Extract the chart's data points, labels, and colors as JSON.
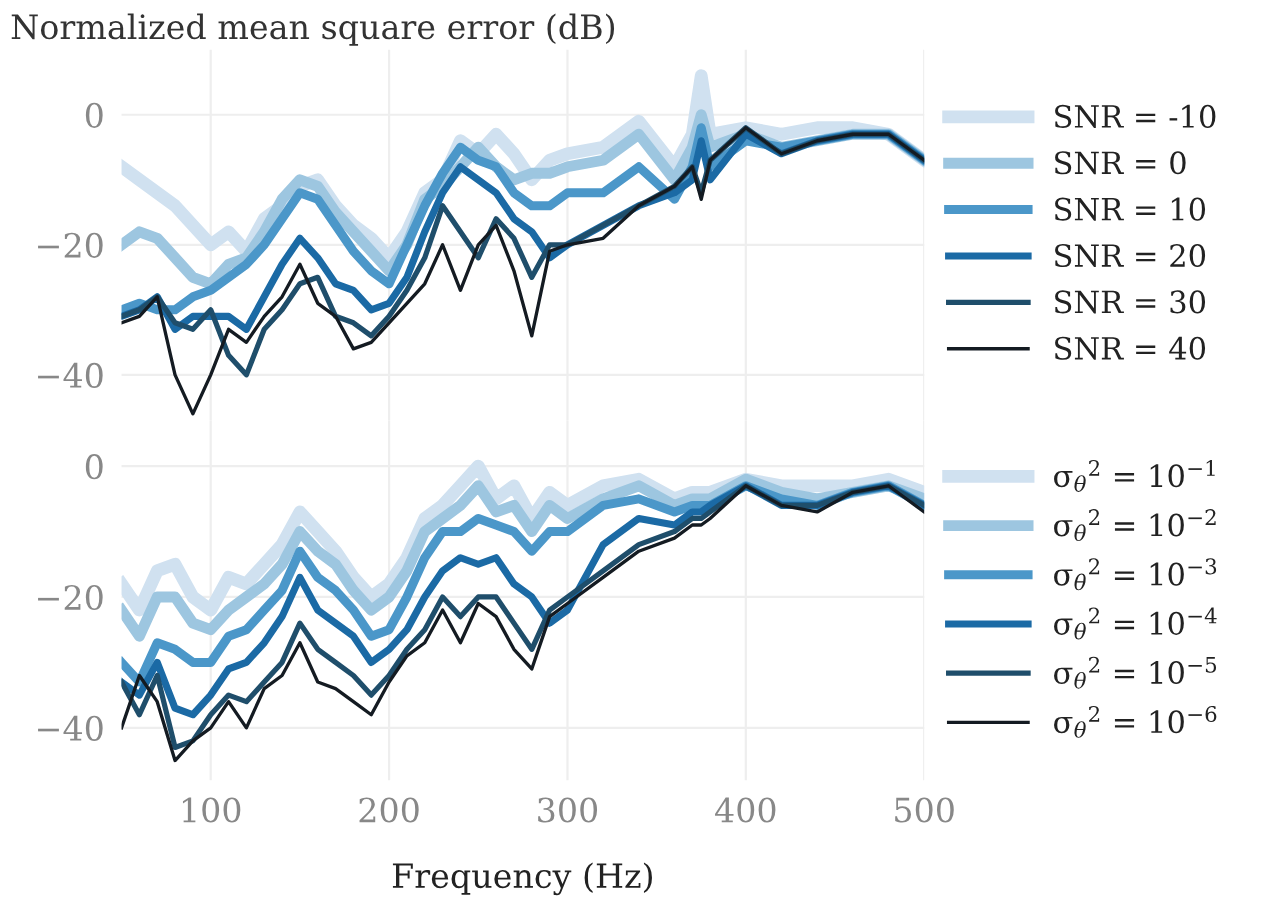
{
  "chart_data": [
    {
      "type": "line",
      "title": "Normalized mean square error (dB)",
      "grid": true,
      "legend": "right",
      "tick_labels": "y",
      "x": [
        50,
        60,
        70,
        80,
        90,
        100,
        110,
        120,
        130,
        140,
        150,
        160,
        170,
        180,
        190,
        200,
        210,
        220,
        230,
        240,
        250,
        260,
        270,
        280,
        290,
        300,
        320,
        340,
        360,
        370,
        375,
        380,
        400,
        420,
        440,
        460,
        480,
        500
      ],
      "xlim": [
        50,
        500
      ],
      "xticks": [
        100,
        200,
        300,
        400,
        500
      ],
      "ylim": [
        -47,
        10
      ],
      "yticks": [
        0,
        -20,
        -40
      ],
      "series": [
        {
          "name": "SNR = -10",
          "color": "#d0e1f0",
          "values": [
            -8,
            -10,
            -12,
            -14,
            -17,
            -20,
            -18,
            -21,
            -16,
            -14,
            -11,
            -10,
            -14,
            -17,
            -19,
            -22,
            -18,
            -12,
            -10,
            -4,
            -6,
            -3,
            -6,
            -10,
            -7,
            -6,
            -5,
            -1,
            -8,
            -3,
            6,
            -3,
            -2,
            -3,
            -2,
            -2,
            -3,
            -7
          ]
        },
        {
          "name": "SNR = 0",
          "color": "#9dc6e0",
          "values": [
            -20,
            -18,
            -19,
            -22,
            -25,
            -26,
            -23,
            -22,
            -18,
            -13,
            -10,
            -11,
            -15,
            -18,
            -21,
            -24,
            -20,
            -13,
            -11,
            -8,
            -5,
            -8,
            -10,
            -9,
            -9,
            -8,
            -7,
            -3,
            -10,
            -5,
            0,
            -5,
            -3,
            -5,
            -4,
            -3,
            -3,
            -7
          ]
        },
        {
          "name": "SNR = 10",
          "color": "#4b97c9",
          "values": [
            -30,
            -29,
            -30,
            -30,
            -28,
            -27,
            -25,
            -23,
            -20,
            -16,
            -12,
            -13,
            -17,
            -21,
            -24,
            -26,
            -20,
            -14,
            -9,
            -5,
            -7,
            -8,
            -12,
            -14,
            -14,
            -12,
            -12,
            -8,
            -13,
            -8,
            -2,
            -8,
            -4,
            -5,
            -4,
            -3,
            -3,
            -7
          ]
        },
        {
          "name": "SNR = 20",
          "color": "#1b6aa5",
          "values": [
            -31,
            -30,
            -28,
            -33,
            -31,
            -31,
            -31,
            -33,
            -28,
            -23,
            -19,
            -22,
            -26,
            -27,
            -30,
            -29,
            -25,
            -18,
            -12,
            -8,
            -10,
            -12,
            -16,
            -18,
            -22,
            -20,
            -17,
            -14,
            -12,
            -10,
            -4,
            -10,
            -3,
            -6,
            -4,
            -3,
            -3,
            -7
          ]
        },
        {
          "name": "SNR = 30",
          "color": "#1f4e6b",
          "values": [
            -31,
            -30,
            -28,
            -32,
            -33,
            -30,
            -37,
            -40,
            -33,
            -30,
            -26,
            -25,
            -31,
            -32,
            -34,
            -31,
            -27,
            -22,
            -14,
            -18,
            -22,
            -16,
            -19,
            -25,
            -20,
            -20,
            -17,
            -14,
            -11,
            -8,
            -12,
            -7,
            -2,
            -6,
            -4,
            -3,
            -3,
            -7
          ]
        },
        {
          "name": "SNR = 40",
          "color": "#141b22",
          "values": [
            -32,
            -31,
            -28,
            -40,
            -46,
            -40,
            -33,
            -35,
            -31,
            -28,
            -23,
            -29,
            -31,
            -36,
            -35,
            -32,
            -29,
            -26,
            -20,
            -27,
            -20,
            -17,
            -24,
            -34,
            -21,
            -20,
            -19,
            -14,
            -11,
            -8,
            -13,
            -7,
            -2,
            -6,
            -4,
            -3,
            -3,
            -7
          ]
        }
      ]
    },
    {
      "type": "line",
      "xlabel": "Frequency (Hz)",
      "grid": true,
      "legend": "right",
      "x": [
        50,
        60,
        70,
        80,
        90,
        100,
        110,
        120,
        130,
        140,
        150,
        160,
        170,
        180,
        190,
        200,
        210,
        220,
        230,
        240,
        250,
        260,
        270,
        280,
        290,
        300,
        320,
        340,
        360,
        370,
        375,
        380,
        400,
        420,
        440,
        460,
        480,
        500
      ],
      "xlim": [
        50,
        500
      ],
      "xticks": [
        100,
        200,
        300,
        400,
        500
      ],
      "ylim": [
        -48,
        7
      ],
      "yticks": [
        0,
        -20,
        -40
      ],
      "series": [
        {
          "name": "σ$_{θ}$$^{2}$ = 10$^{−1}$",
          "color": "#d0e1f0",
          "values": [
            -18,
            -22,
            -16,
            -15,
            -20,
            -22,
            -17,
            -18,
            -15,
            -12,
            -7,
            -10,
            -13,
            -17,
            -20,
            -18,
            -14,
            -8,
            -6,
            -3,
            0,
            -5,
            -3,
            -8,
            -4,
            -6,
            -3,
            -2,
            -5,
            -4,
            -4,
            -4,
            -2,
            -3,
            -3,
            -3,
            -2,
            -4
          ]
        },
        {
          "name": "σ$_{θ}$$^{2}$ = 10$^{−2}$",
          "color": "#9dc6e0",
          "values": [
            -22,
            -26,
            -20,
            -20,
            -24,
            -25,
            -22,
            -20,
            -18,
            -15,
            -10,
            -13,
            -15,
            -19,
            -22,
            -20,
            -16,
            -10,
            -8,
            -6,
            -3,
            -7,
            -6,
            -10,
            -6,
            -8,
            -5,
            -3,
            -6,
            -5,
            -5,
            -5,
            -2,
            -4,
            -5,
            -4,
            -3,
            -5
          ]
        },
        {
          "name": "σ$_{θ}$$^{2}$ = 10$^{−3}$",
          "color": "#4b97c9",
          "values": [
            -30,
            -33,
            -27,
            -28,
            -30,
            -30,
            -26,
            -25,
            -22,
            -19,
            -13,
            -17,
            -19,
            -22,
            -26,
            -25,
            -20,
            -14,
            -10,
            -10,
            -8,
            -9,
            -10,
            -13,
            -10,
            -10,
            -6,
            -5,
            -7,
            -6,
            -6,
            -6,
            -3,
            -5,
            -6,
            -4,
            -3,
            -6
          ]
        },
        {
          "name": "σ$_{θ}$$^{2}$ = 10$^{−4}$",
          "color": "#1b6aa5",
          "values": [
            -33,
            -35,
            -30,
            -37,
            -38,
            -35,
            -31,
            -30,
            -27,
            -23,
            -17,
            -22,
            -24,
            -26,
            -30,
            -28,
            -25,
            -20,
            -16,
            -14,
            -15,
            -14,
            -18,
            -20,
            -24,
            -22,
            -12,
            -8,
            -9,
            -7,
            -7,
            -6,
            -3,
            -6,
            -6,
            -4,
            -3,
            -6
          ]
        },
        {
          "name": "σ$_{θ}$$^{2}$ = 10$^{−5}$",
          "color": "#1f4e6b",
          "values": [
            -33,
            -38,
            -32,
            -43,
            -42,
            -38,
            -35,
            -36,
            -33,
            -30,
            -24,
            -28,
            -30,
            -32,
            -35,
            -32,
            -28,
            -25,
            -20,
            -23,
            -20,
            -20,
            -24,
            -28,
            -22,
            -20,
            -16,
            -12,
            -10,
            -8,
            -8,
            -7,
            -3,
            -6,
            -6,
            -4,
            -3,
            -6
          ]
        },
        {
          "name": "σ$_{θ}$$^{2}$ = 10$^{−6}$",
          "color": "#141b22",
          "values": [
            -40,
            -32,
            -36,
            -45,
            -42,
            -40,
            -36,
            -40,
            -34,
            -32,
            -27,
            -33,
            -34,
            -36,
            -38,
            -33,
            -29,
            -27,
            -22,
            -27,
            -21,
            -23,
            -28,
            -31,
            -23,
            -21,
            -17,
            -13,
            -11,
            -9,
            -9,
            -8,
            -3,
            -6,
            -7,
            -4,
            -3,
            -7
          ]
        }
      ]
    }
  ]
}
